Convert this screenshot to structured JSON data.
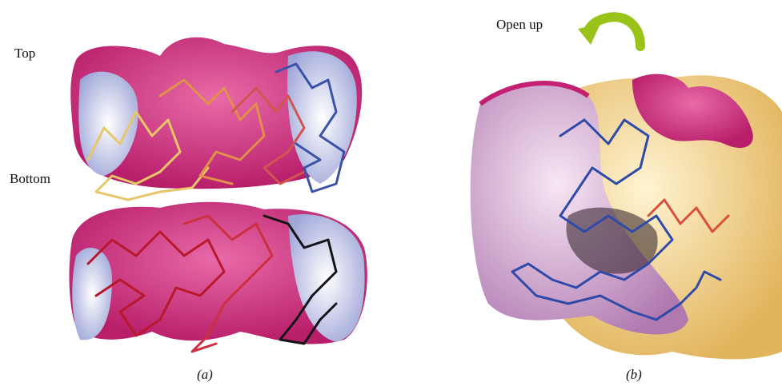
{
  "panels": [
    {
      "label": "(a)",
      "annotations": [
        "Top",
        "Bottom"
      ]
    },
    {
      "label": "(b)",
      "annotations": [
        "Open up"
      ]
    }
  ]
}
